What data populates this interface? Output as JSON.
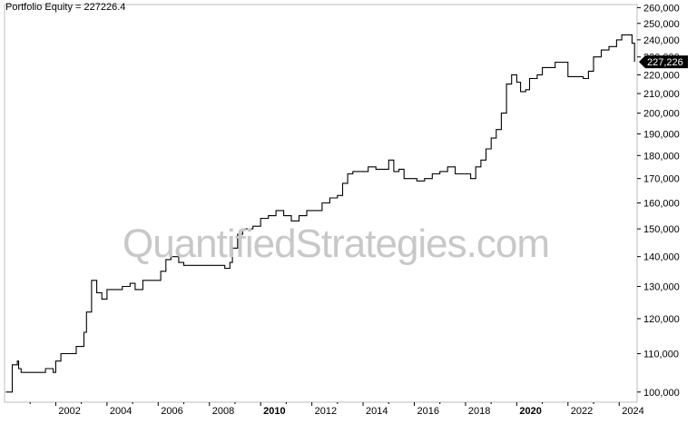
{
  "chart_data": {
    "type": "line",
    "title": "Portfolio Equity = 227226.4",
    "watermark": "QuantifiedStrategies.com",
    "y_scale": "log",
    "xlim": [
      2000.0,
      2024.7
    ],
    "ylim": [
      97500,
      262000
    ],
    "ylabel": "",
    "xlabel": "",
    "grid": false,
    "last_value_label": "227,226",
    "x_ticks": [
      {
        "year": 2002,
        "label": "2002",
        "bold": false
      },
      {
        "year": 2004,
        "label": "2004",
        "bold": false
      },
      {
        "year": 2006,
        "label": "2006",
        "bold": false
      },
      {
        "year": 2008,
        "label": "2008",
        "bold": false
      },
      {
        "year": 2010,
        "label": "2010",
        "bold": true
      },
      {
        "year": 2012,
        "label": "2012",
        "bold": false
      },
      {
        "year": 2014,
        "label": "2014",
        "bold": false
      },
      {
        "year": 2016,
        "label": "2016",
        "bold": false
      },
      {
        "year": 2018,
        "label": "2018",
        "bold": false
      },
      {
        "year": 2020,
        "label": "2020",
        "bold": true
      },
      {
        "year": 2022,
        "label": "2022",
        "bold": false
      },
      {
        "year": 2024,
        "label": "2024",
        "bold": false
      }
    ],
    "y_ticks": [
      {
        "value": 100000,
        "label": "100,000"
      },
      {
        "value": 110000,
        "label": "110,000"
      },
      {
        "value": 120000,
        "label": "120,000"
      },
      {
        "value": 130000,
        "label": "130,000"
      },
      {
        "value": 140000,
        "label": "140,000"
      },
      {
        "value": 150000,
        "label": "150,000"
      },
      {
        "value": 160000,
        "label": "160,000"
      },
      {
        "value": 170000,
        "label": "170,000"
      },
      {
        "value": 180000,
        "label": "180,000"
      },
      {
        "value": 190000,
        "label": "190,000"
      },
      {
        "value": 200000,
        "label": "200,000"
      },
      {
        "value": 210000,
        "label": "210,000"
      },
      {
        "value": 220000,
        "label": "220,000"
      },
      {
        "value": 230000,
        "label": "230,000"
      },
      {
        "value": 240000,
        "label": "240,000"
      },
      {
        "value": 250000,
        "label": "250,000"
      },
      {
        "value": 260000,
        "label": "260,000"
      }
    ],
    "series": [
      {
        "color": "#000000",
        "x": [
          2000.05,
          2000.3,
          2000.3,
          2000.5,
          2000.55,
          2000.65,
          2000.75,
          2001.0,
          2001.3,
          2001.6,
          2001.9,
          2002.0,
          2002.2,
          2002.5,
          2002.8,
          2002.9,
          2003.1,
          2003.2,
          2003.4,
          2003.6,
          2003.8,
          2004.0,
          2004.3,
          2004.6,
          2004.9,
          2005.1,
          2005.4,
          2005.7,
          2005.9,
          2006.1,
          2006.3,
          2006.5,
          2006.8,
          2007.0,
          2007.5,
          2008.0,
          2008.3,
          2008.6,
          2008.8,
          2008.9,
          2009.1,
          2009.3,
          2009.5,
          2009.7,
          2010.0,
          2010.3,
          2010.6,
          2010.9,
          2011.2,
          2011.5,
          2011.8,
          2012.1,
          2012.4,
          2012.7,
          2013.0,
          2013.2,
          2013.4,
          2013.6,
          2013.9,
          2014.2,
          2014.5,
          2014.8,
          2015.0,
          2015.2,
          2015.4,
          2015.6,
          2015.8,
          2016.1,
          2016.4,
          2016.7,
          2017.0,
          2017.3,
          2017.6,
          2017.9,
          2018.2,
          2018.4,
          2018.6,
          2018.8,
          2019.0,
          2019.2,
          2019.4,
          2019.6,
          2019.8,
          2020.0,
          2020.15,
          2020.35,
          2020.5,
          2020.8,
          2021.0,
          2021.2,
          2021.5,
          2021.8,
          2022.0,
          2022.3,
          2022.6,
          2022.8,
          2023.0,
          2023.3,
          2023.6,
          2023.9,
          2024.1,
          2024.3,
          2024.5,
          2024.6
        ],
        "y": [
          100000,
          100000,
          107000,
          108000,
          106000,
          105000,
          105000,
          105000,
          105000,
          106000,
          105000,
          108000,
          110000,
          110000,
          112000,
          112000,
          116000,
          122000,
          132000,
          128000,
          126000,
          129000,
          129000,
          130000,
          131000,
          129000,
          132000,
          132000,
          132000,
          135000,
          139000,
          140000,
          138000,
          137000,
          137000,
          137000,
          137000,
          136000,
          138000,
          143000,
          148000,
          150000,
          150000,
          151000,
          154000,
          155000,
          157000,
          155000,
          153000,
          155000,
          157000,
          157000,
          160000,
          162000,
          163000,
          168000,
          172000,
          173000,
          173000,
          175000,
          174000,
          174000,
          178000,
          173000,
          174000,
          170000,
          170000,
          169000,
          170000,
          172000,
          173000,
          175000,
          172000,
          172000,
          170000,
          175000,
          178000,
          183000,
          188000,
          192000,
          200000,
          215000,
          220000,
          216000,
          211000,
          212000,
          218000,
          220000,
          224000,
          224000,
          227000,
          227000,
          219000,
          219000,
          218000,
          222000,
          230000,
          234000,
          236000,
          240000,
          243000,
          243000,
          238000,
          227226
        ]
      }
    ]
  }
}
